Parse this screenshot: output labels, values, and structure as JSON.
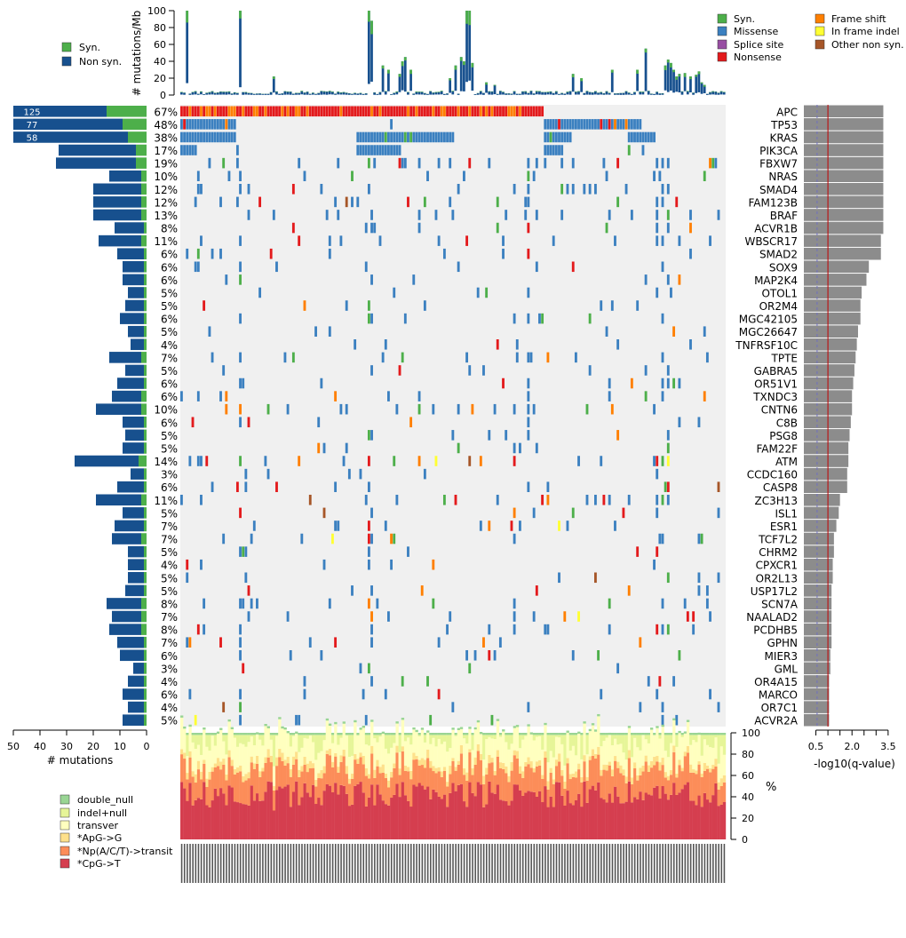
{
  "chart_data": {
    "type": "heatmap",
    "title": "",
    "n_samples": 195,
    "genes": [
      {
        "name": "APC",
        "pct": "67%",
        "count": 125,
        "q": 3.3
      },
      {
        "name": "TP53",
        "pct": "48%",
        "count": 77,
        "q": 3.3
      },
      {
        "name": "KRAS",
        "pct": "38%",
        "count": 58,
        "q": 3.3
      },
      {
        "name": "PIK3CA",
        "pct": "17%",
        "count": 33,
        "q": 3.3
      },
      {
        "name": "FBXW7",
        "pct": "19%",
        "count": 34,
        "q": 3.3
      },
      {
        "name": "NRAS",
        "pct": "10%",
        "count": 14,
        "q": 3.3
      },
      {
        "name": "SMAD4",
        "pct": "12%",
        "count": 20,
        "q": 3.3
      },
      {
        "name": "FAM123B",
        "pct": "12%",
        "count": 20,
        "q": 3.3
      },
      {
        "name": "BRAF",
        "pct": "13%",
        "count": 20,
        "q": 3.3
      },
      {
        "name": "ACVR1B",
        "pct": "8%",
        "count": 12,
        "q": 3.3
      },
      {
        "name": "WBSCR17",
        "pct": "11%",
        "count": 18,
        "q": 3.2
      },
      {
        "name": "SMAD2",
        "pct": "6%",
        "count": 11,
        "q": 3.2
      },
      {
        "name": "SOX9",
        "pct": "6%",
        "count": 9,
        "q": 2.7
      },
      {
        "name": "MAP2K4",
        "pct": "6%",
        "count": 9,
        "q": 2.6
      },
      {
        "name": "OTOL1",
        "pct": "5%",
        "count": 7,
        "q": 2.4
      },
      {
        "name": "OR2M4",
        "pct": "5%",
        "count": 8,
        "q": 2.35
      },
      {
        "name": "MGC42105",
        "pct": "6%",
        "count": 10,
        "q": 2.35
      },
      {
        "name": "MGC26647",
        "pct": "5%",
        "count": 7,
        "q": 2.25
      },
      {
        "name": "TNFRSF10C",
        "pct": "4%",
        "count": 6,
        "q": 2.2
      },
      {
        "name": "TPTE",
        "pct": "7%",
        "count": 14,
        "q": 2.15
      },
      {
        "name": "GABRA5",
        "pct": "5%",
        "count": 8,
        "q": 2.1
      },
      {
        "name": "OR51V1",
        "pct": "6%",
        "count": 11,
        "q": 2.05
      },
      {
        "name": "TXNDC3",
        "pct": "6%",
        "count": 13,
        "q": 2.0
      },
      {
        "name": "CNTN6",
        "pct": "10%",
        "count": 19,
        "q": 2.0
      },
      {
        "name": "C8B",
        "pct": "6%",
        "count": 9,
        "q": 1.95
      },
      {
        "name": "PSG8",
        "pct": "5%",
        "count": 8,
        "q": 1.9
      },
      {
        "name": "FAM22F",
        "pct": "5%",
        "count": 9,
        "q": 1.85
      },
      {
        "name": "ATM",
        "pct": "14%",
        "count": 27,
        "q": 1.85
      },
      {
        "name": "CCDC160",
        "pct": "3%",
        "count": 6,
        "q": 1.8
      },
      {
        "name": "CASP8",
        "pct": "6%",
        "count": 11,
        "q": 1.8
      },
      {
        "name": "ZC3H13",
        "pct": "11%",
        "count": 19,
        "q": 1.5
      },
      {
        "name": "ISL1",
        "pct": "5%",
        "count": 9,
        "q": 1.45
      },
      {
        "name": "ESR1",
        "pct": "7%",
        "count": 12,
        "q": 1.35
      },
      {
        "name": "TCF7L2",
        "pct": "7%",
        "count": 13,
        "q": 1.25
      },
      {
        "name": "CHRM2",
        "pct": "5%",
        "count": 7,
        "q": 1.25
      },
      {
        "name": "CPXCR1",
        "pct": "4%",
        "count": 7,
        "q": 1.2
      },
      {
        "name": "OR2L13",
        "pct": "5%",
        "count": 7,
        "q": 1.2
      },
      {
        "name": "USP17L2",
        "pct": "5%",
        "count": 8,
        "q": 1.15
      },
      {
        "name": "SCN7A",
        "pct": "8%",
        "count": 15,
        "q": 1.15
      },
      {
        "name": "NAALAD2",
        "pct": "7%",
        "count": 13,
        "q": 1.15
      },
      {
        "name": "PCDHB5",
        "pct": "8%",
        "count": 14,
        "q": 1.15
      },
      {
        "name": "GPHN",
        "pct": "7%",
        "count": 11,
        "q": 1.15
      },
      {
        "name": "MIER3",
        "pct": "6%",
        "count": 10,
        "q": 1.1
      },
      {
        "name": "GML",
        "pct": "3%",
        "count": 5,
        "q": 1.1
      },
      {
        "name": "OR4A15",
        "pct": "4%",
        "count": 7,
        "q": 1.05
      },
      {
        "name": "MARCO",
        "pct": "6%",
        "count": 9,
        "q": 1.05
      },
      {
        "name": "OR7C1",
        "pct": "4%",
        "count": 7,
        "q": 1.05
      },
      {
        "name": "ACVR2A",
        "pct": "5%",
        "count": 9,
        "q": 1.05
      }
    ],
    "top_axis": {
      "label": "# mutations/Mb",
      "ticks": [
        0,
        20,
        40,
        60,
        80,
        100
      ],
      "ylim": [
        0,
        100
      ]
    },
    "left_axis": {
      "label": "# mutations",
      "ticks": [
        50,
        40,
        30,
        20,
        10,
        0
      ],
      "xlim": [
        0,
        50
      ]
    },
    "right_axis": {
      "label": "-log10(q-value)",
      "ticks": [
        0.5,
        2.0,
        3.5
      ],
      "tick_labels": [
        "0.5",
        "2.0",
        "3.5"
      ],
      "xlim": [
        0,
        3.8
      ],
      "threshold": 1.0
    },
    "bottom_axis": {
      "label": "%",
      "ticks": [
        0,
        20,
        40,
        60,
        80,
        100
      ],
      "ylim": [
        0,
        100
      ]
    },
    "legend_top_left": [
      "Syn.",
      "Non syn."
    ],
    "legend_top_right": [
      "Syn.",
      "Missense",
      "Splice site",
      "Nonsense",
      "Frame shift",
      "In frame indel",
      "Other non syn."
    ],
    "legend_bottom": [
      "double_null",
      "indel+null",
      "transver",
      "*ApG->G",
      "*Np(A/C/T)->transit",
      "*CpG->T"
    ],
    "colors": {
      "syn": "#4daf4a",
      "nonsyn": "#17508e",
      "missense": "#3b80c0",
      "splice": "#984ea3",
      "nonsense": "#e31a1c",
      "frameshift": "#ff7f00",
      "inframe": "#ffff33",
      "other": "#a65628",
      "grid_bg": "#f0f0f0",
      "qbar": "#8c8c8c",
      "threshold": "#c00000",
      "cpg": "#d53e4f",
      "nptransit": "#fc8d59",
      "apg": "#fee08b",
      "transver": "#ffffbf",
      "indelnull": "#e6f598",
      "doublenull": "#99d594"
    }
  }
}
